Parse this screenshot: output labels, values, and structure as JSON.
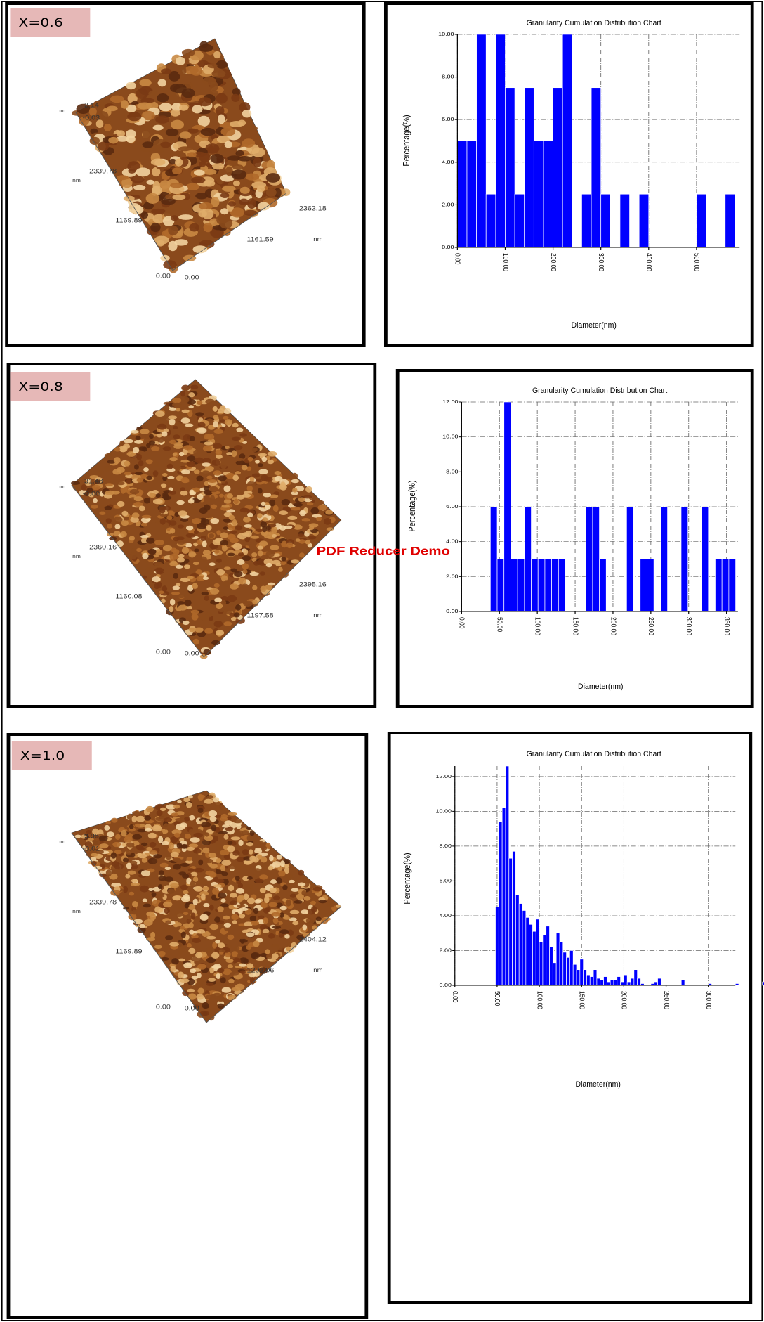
{
  "panels": [
    {
      "label": "X=0.6",
      "afm_labels": [
        "nm",
        "2.14",
        "-0.03",
        "2339.78",
        "nm",
        "1169.89",
        "1161.59",
        "2363.18",
        "nm",
        "0.00",
        "0.00"
      ]
    },
    {
      "label": "X=0.8",
      "afm_labels": [
        "nm",
        "31.48",
        "-0.00",
        "2360.16",
        "nm",
        "1160.08",
        "1197.58",
        "2395.16",
        "nm",
        "0.00",
        "0.00"
      ]
    },
    {
      "label": "X=1.0",
      "afm_labels": [
        "nm",
        "9.98",
        "-0.01",
        "2339.78",
        "nm",
        "1169.89",
        "1202.06",
        "2404.12",
        "nm",
        "0.00",
        "0.00"
      ]
    }
  ],
  "watermark": "PDF Reducer Demo",
  "chart_data": [
    {
      "type": "histogram",
      "title": "Granularity Cumulation Distribution  Chart",
      "x_label": "Diameter(nm)",
      "y_label": "Percentage(%)",
      "color": "#0000ff",
      "grid": true,
      "bins": [
        0,
        20,
        40,
        60,
        80,
        100,
        120,
        140,
        160,
        180,
        200,
        220,
        240,
        260,
        280,
        300,
        320,
        340,
        360,
        380,
        400,
        420,
        440,
        460,
        480,
        500,
        520,
        540,
        560,
        580
      ],
      "values": [
        5,
        5,
        10,
        2.5,
        10,
        7.5,
        2.5,
        7.5,
        5,
        5,
        7.5,
        10,
        0,
        2.5,
        7.5,
        2.5,
        0,
        2.5,
        0,
        2.5,
        0,
        0,
        0,
        0,
        0,
        2.5,
        0,
        0,
        2.5
      ],
      "xlim": [
        0,
        590
      ],
      "xticks": [
        {
          "value": 0,
          "label": "0.00"
        },
        {
          "value": 100,
          "label": "100.00"
        },
        {
          "value": 200,
          "label": "200.00"
        },
        {
          "value": 300,
          "label": "300.00"
        },
        {
          "value": 400,
          "label": "400.00"
        },
        {
          "value": 500,
          "label": "500.00"
        }
      ],
      "ylim": [
        0,
        10
      ],
      "yticks": [
        {
          "value": 0,
          "label": "0.00"
        },
        {
          "value": 2,
          "label": "2.00"
        },
        {
          "value": 4,
          "label": "4.00"
        },
        {
          "value": 6,
          "label": "6.00"
        },
        {
          "value": 8,
          "label": "8.00"
        },
        {
          "value": 10,
          "label": "10.00"
        }
      ]
    },
    {
      "type": "histogram",
      "title": "Granularity Cumulation Distribution  Chart",
      "x_label": "Diameter(nm)",
      "y_label": "Percentage(%)",
      "color": "#0000ff",
      "grid": true,
      "bins": [
        38,
        47,
        56,
        65,
        74,
        83,
        92,
        101,
        110,
        119,
        128,
        137,
        146,
        155,
        164,
        173,
        182,
        191,
        200,
        209,
        218,
        227,
        236,
        245,
        254,
        263,
        272,
        281,
        290,
        299,
        308,
        317,
        326,
        335,
        344,
        353,
        362
      ],
      "values": [
        6,
        3,
        12,
        3,
        3,
        6,
        3,
        3,
        3,
        3,
        3,
        0,
        0,
        0,
        6,
        6,
        3,
        0,
        0,
        0,
        6,
        0,
        3,
        3,
        0,
        6,
        0,
        0,
        6,
        0,
        0,
        6,
        0,
        3,
        3,
        3
      ],
      "xlim": [
        0,
        365
      ],
      "xticks": [
        {
          "value": 0,
          "label": "0.00"
        },
        {
          "value": 50,
          "label": "50.00"
        },
        {
          "value": 100,
          "label": "100.00"
        },
        {
          "value": 150,
          "label": "150.00"
        },
        {
          "value": 200,
          "label": "200.00"
        },
        {
          "value": 250,
          "label": "250.00"
        },
        {
          "value": 300,
          "label": "300.00"
        },
        {
          "value": 350,
          "label": "350.00"
        }
      ],
      "ylim": [
        0,
        12
      ],
      "yticks": [
        {
          "value": 0,
          "label": "0.00"
        },
        {
          "value": 2,
          "label": "2.00"
        },
        {
          "value": 4,
          "label": "4.00"
        },
        {
          "value": 6,
          "label": "6.00"
        },
        {
          "value": 8,
          "label": "8.00"
        },
        {
          "value": 10,
          "label": "10.00"
        },
        {
          "value": 12,
          "label": "12.00"
        }
      ]
    },
    {
      "type": "histogram",
      "title": "Granularity Cumulation Distribution  Chart",
      "x_label": "Diameter(nm)",
      "y_label": "Percentage(%)",
      "color": "#0000ff",
      "grid": true,
      "bins": [
        48,
        52,
        56,
        60,
        64,
        68,
        72,
        76,
        80,
        84,
        88,
        92,
        96,
        100,
        104,
        108,
        112,
        116,
        120,
        124,
        128,
        132,
        136,
        140,
        144,
        148,
        152,
        156,
        160,
        164,
        168,
        172,
        176,
        180,
        184,
        188,
        192,
        196,
        200,
        204,
        208,
        212,
        216,
        220,
        224,
        228,
        232,
        236,
        240,
        244,
        248,
        252,
        256,
        260,
        264,
        268,
        272,
        276,
        280,
        284,
        288,
        292,
        296,
        300,
        304,
        308,
        312,
        316,
        320,
        324,
        328,
        332,
        336,
        340,
        344,
        348,
        352,
        356,
        360,
        364,
        368
      ],
      "values": [
        4.5,
        9.4,
        10.2,
        12.6,
        7.3,
        7.7,
        5.2,
        4.7,
        4.3,
        3.9,
        3.5,
        3.1,
        3.8,
        2.5,
        2.9,
        3.4,
        2.2,
        1.3,
        3.0,
        2.5,
        1.9,
        1.6,
        2.0,
        1.2,
        0.9,
        1.5,
        0.9,
        0.6,
        0.5,
        0.9,
        0.4,
        0.3,
        0.5,
        0.2,
        0.3,
        0.3,
        0.5,
        0.2,
        0.6,
        0.2,
        0.4,
        0.9,
        0.4,
        0.1,
        0,
        0,
        0.1,
        0.2,
        0.4,
        0,
        0,
        0,
        0,
        0,
        0,
        0.3,
        0,
        0,
        0,
        0,
        0,
        0,
        0,
        0.1,
        0,
        0,
        0,
        0,
        0,
        0,
        0,
        0.1,
        0,
        0,
        0,
        0,
        0,
        0,
        0,
        0.2
      ],
      "xlim": [
        0,
        332
      ],
      "xticks": [
        {
          "value": 0,
          "label": "0.00"
        },
        {
          "value": 50,
          "label": "50.00"
        },
        {
          "value": 100,
          "label": "100.00"
        },
        {
          "value": 150,
          "label": "150.00"
        },
        {
          "value": 200,
          "label": "200.00"
        },
        {
          "value": 250,
          "label": "250.00"
        },
        {
          "value": 300,
          "label": "300.00"
        }
      ],
      "ylim": [
        0,
        12.6
      ],
      "yticks": [
        {
          "value": 0,
          "label": "0.00"
        },
        {
          "value": 2,
          "label": "2.00"
        },
        {
          "value": 4,
          "label": "4.00"
        },
        {
          "value": 6,
          "label": "6.00"
        },
        {
          "value": 8,
          "label": "8.00"
        },
        {
          "value": 10,
          "label": "10.00"
        },
        {
          "value": 12,
          "label": "12.00"
        }
      ]
    }
  ]
}
